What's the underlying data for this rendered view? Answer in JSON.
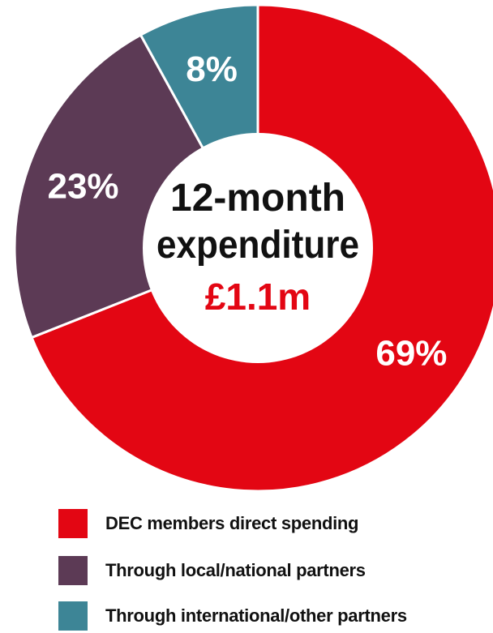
{
  "chart_data": {
    "type": "pie",
    "donut": true,
    "center_title_line1": "12-month",
    "center_title_line2": "expenditure",
    "center_value": "£1.1m",
    "center_value_color": "#e30613",
    "slices": [
      {
        "label": "DEC members direct spending",
        "value": 69,
        "display": "69%",
        "color": "#e30613"
      },
      {
        "label": "Through local/national partners",
        "value": 23,
        "display": "23%",
        "color": "#5c3a55"
      },
      {
        "label": "Through international/other partners",
        "value": 8,
        "display": "8%",
        "color": "#3d8596"
      }
    ],
    "legend_position": "bottom"
  }
}
